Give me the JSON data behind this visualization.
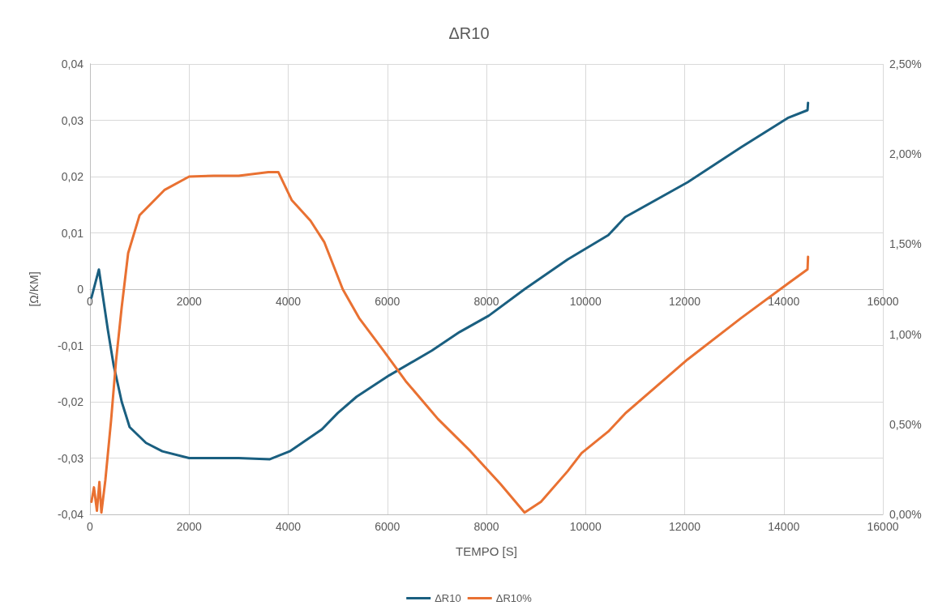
{
  "chart_data": {
    "type": "line",
    "title": "ΔR10",
    "xlabel": "TEMPO [S]",
    "ylabel": "[Ω/KM]",
    "xlim": [
      0,
      16000
    ],
    "xticks": [
      0,
      2000,
      4000,
      6000,
      8000,
      10000,
      12000,
      14000,
      16000
    ],
    "x2lim": [
      0,
      16000
    ],
    "x2ticks": [
      0,
      2000,
      4000,
      6000,
      8000,
      10000,
      12000,
      14000,
      16000
    ],
    "ylim": [
      -0.04,
      0.04
    ],
    "yticks": [
      {
        "value": -0.04,
        "label": "-0,04"
      },
      {
        "value": -0.03,
        "label": "-0,03"
      },
      {
        "value": -0.02,
        "label": "-0,02"
      },
      {
        "value": -0.01,
        "label": "-0,01"
      },
      {
        "value": 0,
        "label": "0"
      },
      {
        "value": 0.01,
        "label": "0,01"
      },
      {
        "value": 0.02,
        "label": "0,02"
      },
      {
        "value": 0.03,
        "label": "0,03"
      },
      {
        "value": 0.04,
        "label": "0,04"
      }
    ],
    "y2lim": [
      0,
      2.5
    ],
    "y2ticks": [
      {
        "value": 0,
        "label": "0,00%"
      },
      {
        "value": 0.5,
        "label": "0,50%"
      },
      {
        "value": 1,
        "label": "1,00%"
      },
      {
        "value": 1.5,
        "label": "1,50%"
      },
      {
        "value": 2,
        "label": "2,00%"
      },
      {
        "value": 2.5,
        "label": "2,50%"
      }
    ],
    "grid": true,
    "legend": "bottom",
    "marker": "none",
    "line_style": "solid",
    "series": [
      {
        "name": "ΔR10",
        "color": "#1a5f80",
        "x": [
          30,
          180,
          360,
          475,
          640,
          800,
          1130,
          1460,
          2000,
          2500,
          3000,
          3630,
          4030,
          4680,
          5000,
          5380,
          6040,
          6900,
          7460,
          8050,
          8770,
          9640,
          10460,
          10800,
          12060,
          13140,
          14080,
          14480,
          14490
        ],
        "values": [
          -0.0015,
          0.0035,
          -0.0072,
          -0.0134,
          -0.02,
          -0.0245,
          -0.0273,
          -0.0288,
          -0.03,
          -0.03,
          -0.03,
          -0.0302,
          -0.0288,
          -0.0249,
          -0.022,
          -0.0191,
          -0.0153,
          -0.0109,
          -0.0076,
          -0.0047,
          0,
          0.0053,
          0.0096,
          0.0128,
          0.019,
          0.0252,
          0.0304,
          0.0318,
          0.0331
        ]
      },
      {
        "name": "ΔR10%",
        "color": "#e97132",
        "axis": "y2",
        "x": [
          30,
          80,
          140,
          190,
          230,
          310,
          425,
          525,
          640,
          770,
          1000,
          1500,
          2000,
          2500,
          3000,
          3600,
          3800,
          4070,
          4450,
          4730,
          5100,
          5430,
          5920,
          6370,
          7020,
          7680,
          8280,
          8770,
          9100,
          9640,
          9920,
          10460,
          10800,
          12060,
          13140,
          14080,
          14480,
          14490
        ],
        "values": [
          0.07,
          0.15,
          0.02,
          0.18,
          0.01,
          0.19,
          0.52,
          0.85,
          1.15,
          1.45,
          1.66,
          1.8,
          1.875,
          1.88,
          1.88,
          1.9,
          1.9,
          1.745,
          1.63,
          1.51,
          1.25,
          1.09,
          0.91,
          0.74,
          0.53,
          0.35,
          0.17,
          0.01,
          0.07,
          0.24,
          0.34,
          0.46,
          0.56,
          0.86,
          1.09,
          1.28,
          1.36,
          1.43
        ]
      }
    ]
  }
}
